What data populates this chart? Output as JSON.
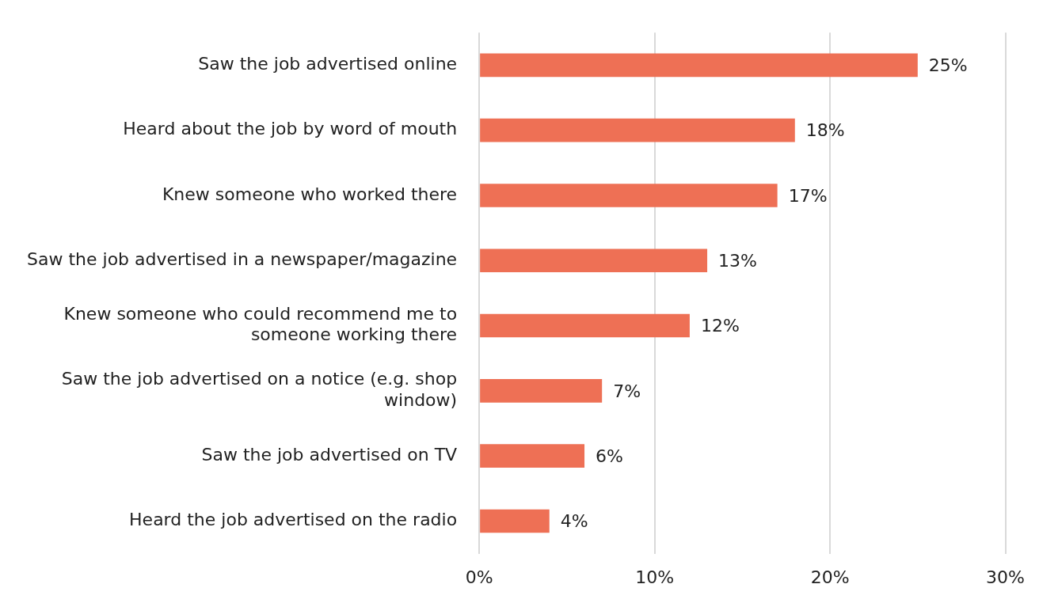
{
  "chart_data": {
    "type": "bar",
    "orientation": "horizontal",
    "categories": [
      "Saw the job advertised online",
      "Heard about the job by word of mouth",
      "Knew someone who worked there",
      "Saw the job advertised in a newspaper/magazine",
      "Knew someone who could recommend me to someone working there",
      "Saw the job advertised on a notice (e.g. shop window)",
      "Saw the job advertised on TV",
      "Heard the job advertised on the radio"
    ],
    "values": [
      25,
      18,
      17,
      13,
      12,
      7,
      6,
      4
    ],
    "color": "#ee7055",
    "value_labels": [
      "25%",
      "18%",
      "17%",
      "13%",
      "12%",
      "7%",
      "6%",
      "4%"
    ],
    "xlim": [
      0,
      30
    ],
    "xticks": [
      {
        "value": 0,
        "label": "0%"
      },
      {
        "value": 10,
        "label": "10%"
      },
      {
        "value": 20,
        "label": "20%"
      },
      {
        "value": 30,
        "label": "30%"
      }
    ],
    "grid": "x"
  }
}
